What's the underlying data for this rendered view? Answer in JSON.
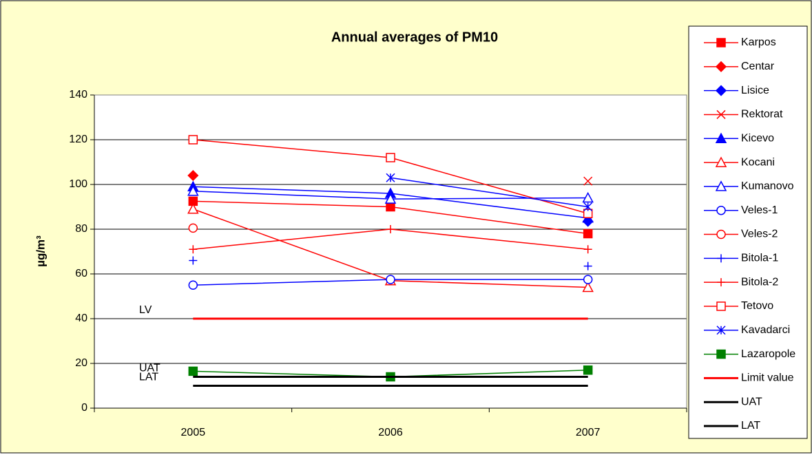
{
  "chart_data": {
    "type": "line",
    "title": "Annual averages of PM10",
    "y_label": "µg/m³",
    "categories": [
      "2005",
      "2006",
      "2007"
    ],
    "ylim": [
      0,
      140
    ],
    "yticks": [
      0,
      20,
      40,
      60,
      80,
      100,
      120,
      140
    ],
    "grid": true,
    "legend": "right",
    "series": [
      {
        "name": "Karpos",
        "color": "#ff0000",
        "marker": "square",
        "filled": true,
        "line": true,
        "values": [
          92.5,
          90,
          78
        ]
      },
      {
        "name": "Centar",
        "color": "#ff0000",
        "marker": "diamond",
        "filled": true,
        "line": true,
        "values": [
          104,
          null,
          null
        ]
      },
      {
        "name": "Lisice",
        "color": "#0000ff",
        "marker": "diamond",
        "filled": true,
        "line": true,
        "values": [
          null,
          null,
          83.5
        ]
      },
      {
        "name": "Rektorat",
        "color": "#ff0000",
        "marker": "x",
        "filled": false,
        "line": true,
        "values": [
          null,
          null,
          101.5
        ]
      },
      {
        "name": "Kicevo",
        "color": "#0000ff",
        "marker": "triangle",
        "filled": true,
        "line": true,
        "values": [
          99,
          96,
          85
        ]
      },
      {
        "name": "Kocani",
        "color": "#ff0000",
        "marker": "triangle",
        "filled": false,
        "line": true,
        "values": [
          89,
          57,
          54
        ]
      },
      {
        "name": "Kumanovo",
        "color": "#0000ff",
        "marker": "triangle",
        "filled": false,
        "line": true,
        "values": [
          97,
          93.5,
          94
        ]
      },
      {
        "name": "Veles-1",
        "color": "#0000ff",
        "marker": "circle",
        "filled": false,
        "line": true,
        "values": [
          55,
          57.5,
          57.5
        ]
      },
      {
        "name": "Veles-2",
        "color": "#ff0000",
        "marker": "circle",
        "filled": false,
        "line": true,
        "values": [
          80.5,
          null,
          null
        ]
      },
      {
        "name": "Bitola-1",
        "color": "#0000ff",
        "marker": "plus",
        "filled": false,
        "line": true,
        "values": [
          66,
          null,
          63.5
        ]
      },
      {
        "name": "Bitola-2",
        "color": "#ff0000",
        "marker": "plus",
        "filled": false,
        "line": true,
        "values": [
          71,
          80,
          71
        ]
      },
      {
        "name": "Tetovo",
        "color": "#ff0000",
        "marker": "square",
        "filled": false,
        "line": true,
        "values": [
          120,
          112,
          87
        ]
      },
      {
        "name": "Kavadarci",
        "color": "#0000ff",
        "marker": "star",
        "filled": false,
        "line": true,
        "values": [
          null,
          103,
          90
        ]
      },
      {
        "name": "Lazaropole",
        "color": "#008000",
        "marker": "square",
        "filled": true,
        "line": true,
        "values": [
          16.5,
          14,
          17
        ]
      },
      {
        "name": "Limit value",
        "color": "#ff0000",
        "marker": "none",
        "filled": false,
        "line": true,
        "width": 3,
        "values": [
          40,
          40,
          40
        ]
      },
      {
        "name": "UAT",
        "color": "#000000",
        "marker": "none",
        "filled": false,
        "line": true,
        "width": 3,
        "values": [
          14,
          14,
          14
        ]
      },
      {
        "name": "LAT",
        "color": "#000000",
        "marker": "none",
        "filled": false,
        "line": true,
        "width": 3,
        "values": [
          10,
          10,
          10
        ]
      }
    ],
    "annotations": [
      {
        "text": "LV",
        "y": 40
      },
      {
        "text": "UAT",
        "y": 14
      },
      {
        "text": "LAT",
        "y": 10
      }
    ]
  }
}
